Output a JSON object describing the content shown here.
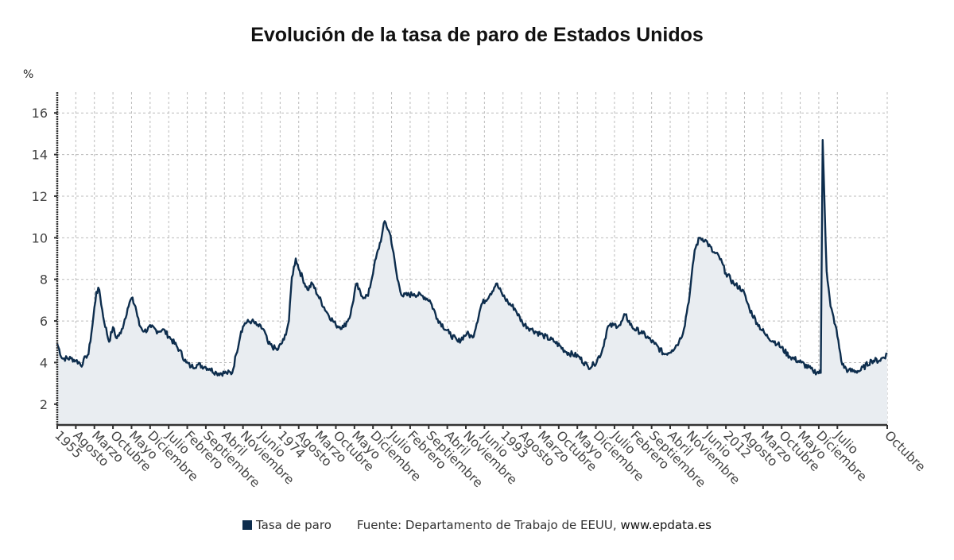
{
  "chart_data": {
    "type": "area",
    "title": "Evolución de la tasa de paro de Estados Unidos",
    "ylabel": "%",
    "xlabel": "",
    "ylim": [
      1,
      17
    ],
    "yticks": [
      2,
      4,
      6,
      8,
      10,
      12,
      14,
      16
    ],
    "x_start": "1955-01",
    "x_end": "2025-10",
    "x_tick_every_months": 19,
    "x_tick_labels": [
      "1955",
      "Agosto",
      "Marzo",
      "Octubre",
      "Mayo",
      "Diciembre",
      "Julio",
      "Febrero",
      "Septiembre",
      "Abril",
      "Noviembre",
      "Junio",
      "1974",
      "Agosto",
      "Marzo",
      "Octubre",
      "Mayo",
      "Diciembre",
      "Julio",
      "Febrero",
      "Septiembre",
      "Abril",
      "Noviembre",
      "Junio",
      "1993",
      "Agosto",
      "Marzo",
      "Octubre",
      "Mayo",
      "Diciembre",
      "Julio",
      "Febrero",
      "Septiembre",
      "Abril",
      "Noviembre",
      "Junio",
      "2012",
      "Agosto",
      "Marzo",
      "Octubre",
      "Mayo",
      "Diciembre",
      "Julio",
      "Octubre"
    ],
    "grid": true,
    "legend_position": "bottom",
    "series": [
      {
        "name": "Tasa de paro",
        "color": "#0d2d4d",
        "fill": "#e9edf1",
        "anchors": [
          [
            "1955-01",
            4.9
          ],
          [
            "1955-06",
            4.2
          ],
          [
            "1956-03",
            4.2
          ],
          [
            "1956-08",
            4.1
          ],
          [
            "1957-03",
            3.9
          ],
          [
            "1957-06",
            4.3
          ],
          [
            "1957-09",
            4.4
          ],
          [
            "1958-01",
            5.8
          ],
          [
            "1958-05",
            7.4
          ],
          [
            "1958-08",
            7.5
          ],
          [
            "1958-12",
            6.2
          ],
          [
            "1959-06",
            5.0
          ],
          [
            "1959-10",
            5.7
          ],
          [
            "1960-01",
            5.2
          ],
          [
            "1960-06",
            5.4
          ],
          [
            "1961-01",
            6.6
          ],
          [
            "1961-05",
            7.1
          ],
          [
            "1961-09",
            6.7
          ],
          [
            "1962-01",
            5.8
          ],
          [
            "1962-06",
            5.5
          ],
          [
            "1963-01",
            5.7
          ],
          [
            "1963-08",
            5.5
          ],
          [
            "1964-01",
            5.6
          ],
          [
            "1964-10",
            5.1
          ],
          [
            "1965-06",
            4.6
          ],
          [
            "1966-01",
            4.0
          ],
          [
            "1966-06",
            3.8
          ],
          [
            "1967-01",
            3.9
          ],
          [
            "1967-08",
            3.8
          ],
          [
            "1968-01",
            3.7
          ],
          [
            "1968-08",
            3.5
          ],
          [
            "1969-06",
            3.5
          ],
          [
            "1969-12",
            3.5
          ],
          [
            "1970-04",
            4.4
          ],
          [
            "1970-09",
            5.5
          ],
          [
            "1971-01",
            5.9
          ],
          [
            "1971-08",
            6.0
          ],
          [
            "1972-01",
            5.8
          ],
          [
            "1972-08",
            5.6
          ],
          [
            "1973-01",
            4.9
          ],
          [
            "1973-10",
            4.6
          ],
          [
            "1974-05",
            5.1
          ],
          [
            "1974-10",
            6.0
          ],
          [
            "1975-01",
            8.1
          ],
          [
            "1975-05",
            9.0
          ],
          [
            "1975-09",
            8.4
          ],
          [
            "1976-05",
            7.5
          ],
          [
            "1976-10",
            7.8
          ],
          [
            "1977-04",
            7.2
          ],
          [
            "1978-01",
            6.4
          ],
          [
            "1978-10",
            5.8
          ],
          [
            "1979-06",
            5.7
          ],
          [
            "1980-01",
            6.3
          ],
          [
            "1980-07",
            7.8
          ],
          [
            "1980-12",
            7.2
          ],
          [
            "1981-07",
            7.2
          ],
          [
            "1982-01",
            8.6
          ],
          [
            "1982-09",
            10.1
          ],
          [
            "1982-12",
            10.8
          ],
          [
            "1983-06",
            10.1
          ],
          [
            "1984-01",
            8.0
          ],
          [
            "1984-06",
            7.2
          ],
          [
            "1985-06",
            7.3
          ],
          [
            "1986-03",
            7.2
          ],
          [
            "1986-10",
            7.0
          ],
          [
            "1987-06",
            6.1
          ],
          [
            "1988-06",
            5.4
          ],
          [
            "1989-03",
            5.0
          ],
          [
            "1989-12",
            5.4
          ],
          [
            "1990-06",
            5.2
          ],
          [
            "1991-03",
            6.8
          ],
          [
            "1991-12",
            7.3
          ],
          [
            "1992-06",
            7.8
          ],
          [
            "1992-12",
            7.3
          ],
          [
            "1993-06",
            6.9
          ],
          [
            "1994-01",
            6.6
          ],
          [
            "1994-09",
            5.9
          ],
          [
            "1995-06",
            5.6
          ],
          [
            "1996-06",
            5.3
          ],
          [
            "1997-06",
            5.0
          ],
          [
            "1998-06",
            4.5
          ],
          [
            "1999-06",
            4.3
          ],
          [
            "2000-04",
            3.8
          ],
          [
            "2000-10",
            3.9
          ],
          [
            "2001-06",
            4.5
          ],
          [
            "2001-12",
            5.7
          ],
          [
            "2002-06",
            5.8
          ],
          [
            "2003-01",
            5.8
          ],
          [
            "2003-06",
            6.3
          ],
          [
            "2004-01",
            5.7
          ],
          [
            "2004-12",
            5.4
          ],
          [
            "2005-12",
            4.9
          ],
          [
            "2006-10",
            4.4
          ],
          [
            "2007-06",
            4.6
          ],
          [
            "2008-01",
            5.0
          ],
          [
            "2008-06",
            5.6
          ],
          [
            "2008-12",
            7.3
          ],
          [
            "2009-05",
            9.4
          ],
          [
            "2009-10",
            10.0
          ],
          [
            "2010-04",
            9.9
          ],
          [
            "2010-12",
            9.3
          ],
          [
            "2011-06",
            9.1
          ],
          [
            "2012-01",
            8.3
          ],
          [
            "2012-09",
            7.8
          ],
          [
            "2013-06",
            7.5
          ],
          [
            "2014-01",
            6.6
          ],
          [
            "2014-09",
            5.9
          ],
          [
            "2015-06",
            5.3
          ],
          [
            "2016-06",
            4.9
          ],
          [
            "2017-06",
            4.3
          ],
          [
            "2018-06",
            4.0
          ],
          [
            "2019-06",
            3.6
          ],
          [
            "2020-02",
            3.5
          ],
          [
            "2020-04",
            14.7
          ],
          [
            "2020-08",
            8.4
          ],
          [
            "2020-12",
            6.7
          ],
          [
            "2021-05",
            5.8
          ],
          [
            "2021-12",
            3.9
          ],
          [
            "2022-06",
            3.6
          ],
          [
            "2023-06",
            3.6
          ],
          [
            "2024-06",
            4.1
          ],
          [
            "2025-02",
            4.1
          ],
          [
            "2025-10",
            4.4
          ]
        ]
      }
    ]
  },
  "legend": {
    "series_label": "Tasa de paro",
    "source_label": "Fuente: Departamento de Trabajo de EEUU,",
    "source_site": "www.epdata.es"
  }
}
